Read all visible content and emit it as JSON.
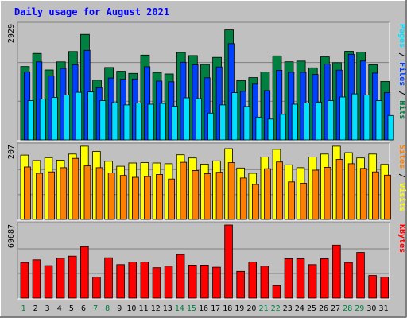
{
  "chart_data": {
    "type": "bar",
    "title": "Daily usage for August 2021",
    "categories": [
      "1",
      "2",
      "3",
      "4",
      "5",
      "6",
      "7",
      "8",
      "9",
      "10",
      "11",
      "12",
      "13",
      "14",
      "15",
      "16",
      "17",
      "18",
      "19",
      "20",
      "21",
      "22",
      "23",
      "24",
      "25",
      "26",
      "27",
      "28",
      "29",
      "30",
      "31"
    ],
    "weekend_days": [
      "1",
      "7",
      "8",
      "14",
      "15",
      "21",
      "22",
      "28",
      "29"
    ],
    "panels": [
      {
        "name": "hits-files-pages",
        "max_label": "2929",
        "ymax": 2929,
        "grid": true,
        "legend": [
          "Pages",
          " / ",
          "Files",
          " / ",
          "Hits"
        ],
        "series": [
          {
            "name": "Hits",
            "color": "#008040",
            "values": [
              1865,
              2197,
              1777,
              1983,
              2246,
              2683,
              1520,
              1840,
              1745,
              1691,
              2156,
              1714,
              1677,
              2221,
              2144,
              1919,
              2097,
              2796,
              1505,
              1584,
              1728,
              2136,
              1986,
              2004,
              1833,
              2109,
              1964,
              2253,
              2233,
              1909,
              1484
            ]
          },
          {
            "name": "Files",
            "color": "#0040FF",
            "values": [
              1727,
              1983,
              1625,
              1815,
              1913,
              2276,
              1328,
              1573,
              1545,
              1549,
              1860,
              1495,
              1478,
              1974,
              1909,
              1579,
              1854,
              2449,
              1237,
              1419,
              1255,
              1770,
              1722,
              1720,
              1665,
              1927,
              1774,
              2176,
              2006,
              1698,
              1201
            ]
          },
          {
            "name": "Pages",
            "color": "#00E0FF",
            "values": [
              1000,
              1040,
              1080,
              1140,
              1210,
              1220,
              1000,
              950,
              890,
              940,
              910,
              930,
              860,
              1070,
              1050,
              680,
              890,
              1200,
              850,
              580,
              530,
              650,
              910,
              940,
              960,
              1000,
              1090,
              1170,
              1140,
              1000,
              620
            ]
          }
        ]
      },
      {
        "name": "visits-sites",
        "max_label": "207",
        "ymax": 207,
        "grid": true,
        "legend": [
          "Sites",
          " / ",
          "Visits"
        ],
        "series": [
          {
            "name": "Visits",
            "color": "#FFFF00",
            "values": [
              180,
              165,
              173,
              166,
              183,
              205,
              190,
              163,
              149,
              158,
              159,
              158,
              156,
              181,
              172,
              155,
              164,
              198,
              144,
              129,
              175,
              196,
              153,
              145,
              175,
              183,
              205,
              187,
              172,
              183,
              154
            ]
          },
          {
            "name": "Sites",
            "color": "#FF8000",
            "values": [
              147,
              129,
              133,
              145,
              171,
              150,
              145,
              130,
              123,
              118,
              120,
              126,
              113,
              160,
              137,
              128,
              132,
              159,
              116,
              98,
              142,
              161,
              105,
              101,
              138,
              146,
              168,
              156,
              143,
              133,
              124
            ]
          }
        ]
      },
      {
        "name": "kbytes",
        "max_label": "69687",
        "ymax": 69687,
        "grid": true,
        "legend": [
          "KBytes"
        ],
        "series": [
          {
            "name": "KBytes",
            "color": "#FF0000",
            "values": [
              34000,
              36500,
              31000,
              38000,
              40000,
              49000,
              20000,
              38500,
              32000,
              34500,
              34500,
              29000,
              30500,
              41500,
              31500,
              31500,
              29500,
              69687,
              25500,
              34500,
              30500,
              12000,
              37500,
              37500,
              32000,
              37500,
              50500,
              34000,
              43500,
              21500,
              20000
            ]
          }
        ]
      }
    ]
  }
}
